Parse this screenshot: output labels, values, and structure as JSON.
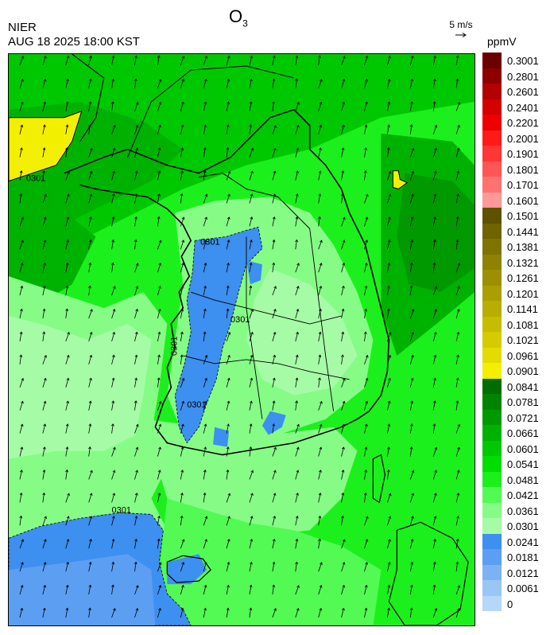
{
  "header": {
    "title_main": "O",
    "title_sub": "3",
    "agency": "NIER",
    "timestamp": "AUG 18 2025 18:00 KST",
    "wind_ref": "5 m/s",
    "unit": "ppmV"
  },
  "contour_labels": [
    "0301",
    "0301",
    "0301",
    "0301",
    "0301",
    "0301"
  ],
  "legend": [
    {
      "label": "0.3001",
      "color": "#6b0000"
    },
    {
      "label": "0.2801",
      "color": "#8e0000"
    },
    {
      "label": "0.2601",
      "color": "#b30000"
    },
    {
      "label": "0.2401",
      "color": "#d40000"
    },
    {
      "label": "0.2201",
      "color": "#ee0000"
    },
    {
      "label": "0.2001",
      "color": "#ff1a1a"
    },
    {
      "label": "0.1901",
      "color": "#ff3636"
    },
    {
      "label": "0.1801",
      "color": "#ff5555"
    },
    {
      "label": "0.1701",
      "color": "#ff7272"
    },
    {
      "label": "0.1601",
      "color": "#ff9898"
    },
    {
      "label": "0.1501",
      "color": "#5d5200"
    },
    {
      "label": "0.1441",
      "color": "#6f6400"
    },
    {
      "label": "0.1381",
      "color": "#7f7400"
    },
    {
      "label": "0.1321",
      "color": "#8e8200"
    },
    {
      "label": "0.1261",
      "color": "#9c9000"
    },
    {
      "label": "0.1201",
      "color": "#ab9e00"
    },
    {
      "label": "0.1141",
      "color": "#b8ad00"
    },
    {
      "label": "0.1081",
      "color": "#c6bc00"
    },
    {
      "label": "0.1021",
      "color": "#d5cb00"
    },
    {
      "label": "0.0961",
      "color": "#e4db00"
    },
    {
      "label": "0.0901",
      "color": "#f3ef00"
    },
    {
      "label": "0.0841",
      "color": "#006d00"
    },
    {
      "label": "0.0781",
      "color": "#008300"
    },
    {
      "label": "0.0721",
      "color": "#009a00"
    },
    {
      "label": "0.0661",
      "color": "#00b200"
    },
    {
      "label": "0.0601",
      "color": "#00c800"
    },
    {
      "label": "0.0541",
      "color": "#00dd00"
    },
    {
      "label": "0.0481",
      "color": "#1cf01c"
    },
    {
      "label": "0.0421",
      "color": "#54fa54"
    },
    {
      "label": "0.0361",
      "color": "#86fc86"
    },
    {
      "label": "0.0301",
      "color": "#a6fca6"
    },
    {
      "label": "0.0241",
      "color": "#3d8ff0"
    },
    {
      "label": "0.0181",
      "color": "#5c9ff2"
    },
    {
      "label": "0.0121",
      "color": "#7cb2f4"
    },
    {
      "label": "0.0061",
      "color": "#9ac6f6"
    },
    {
      "label": "0",
      "color": "#b6d7f8"
    }
  ]
}
